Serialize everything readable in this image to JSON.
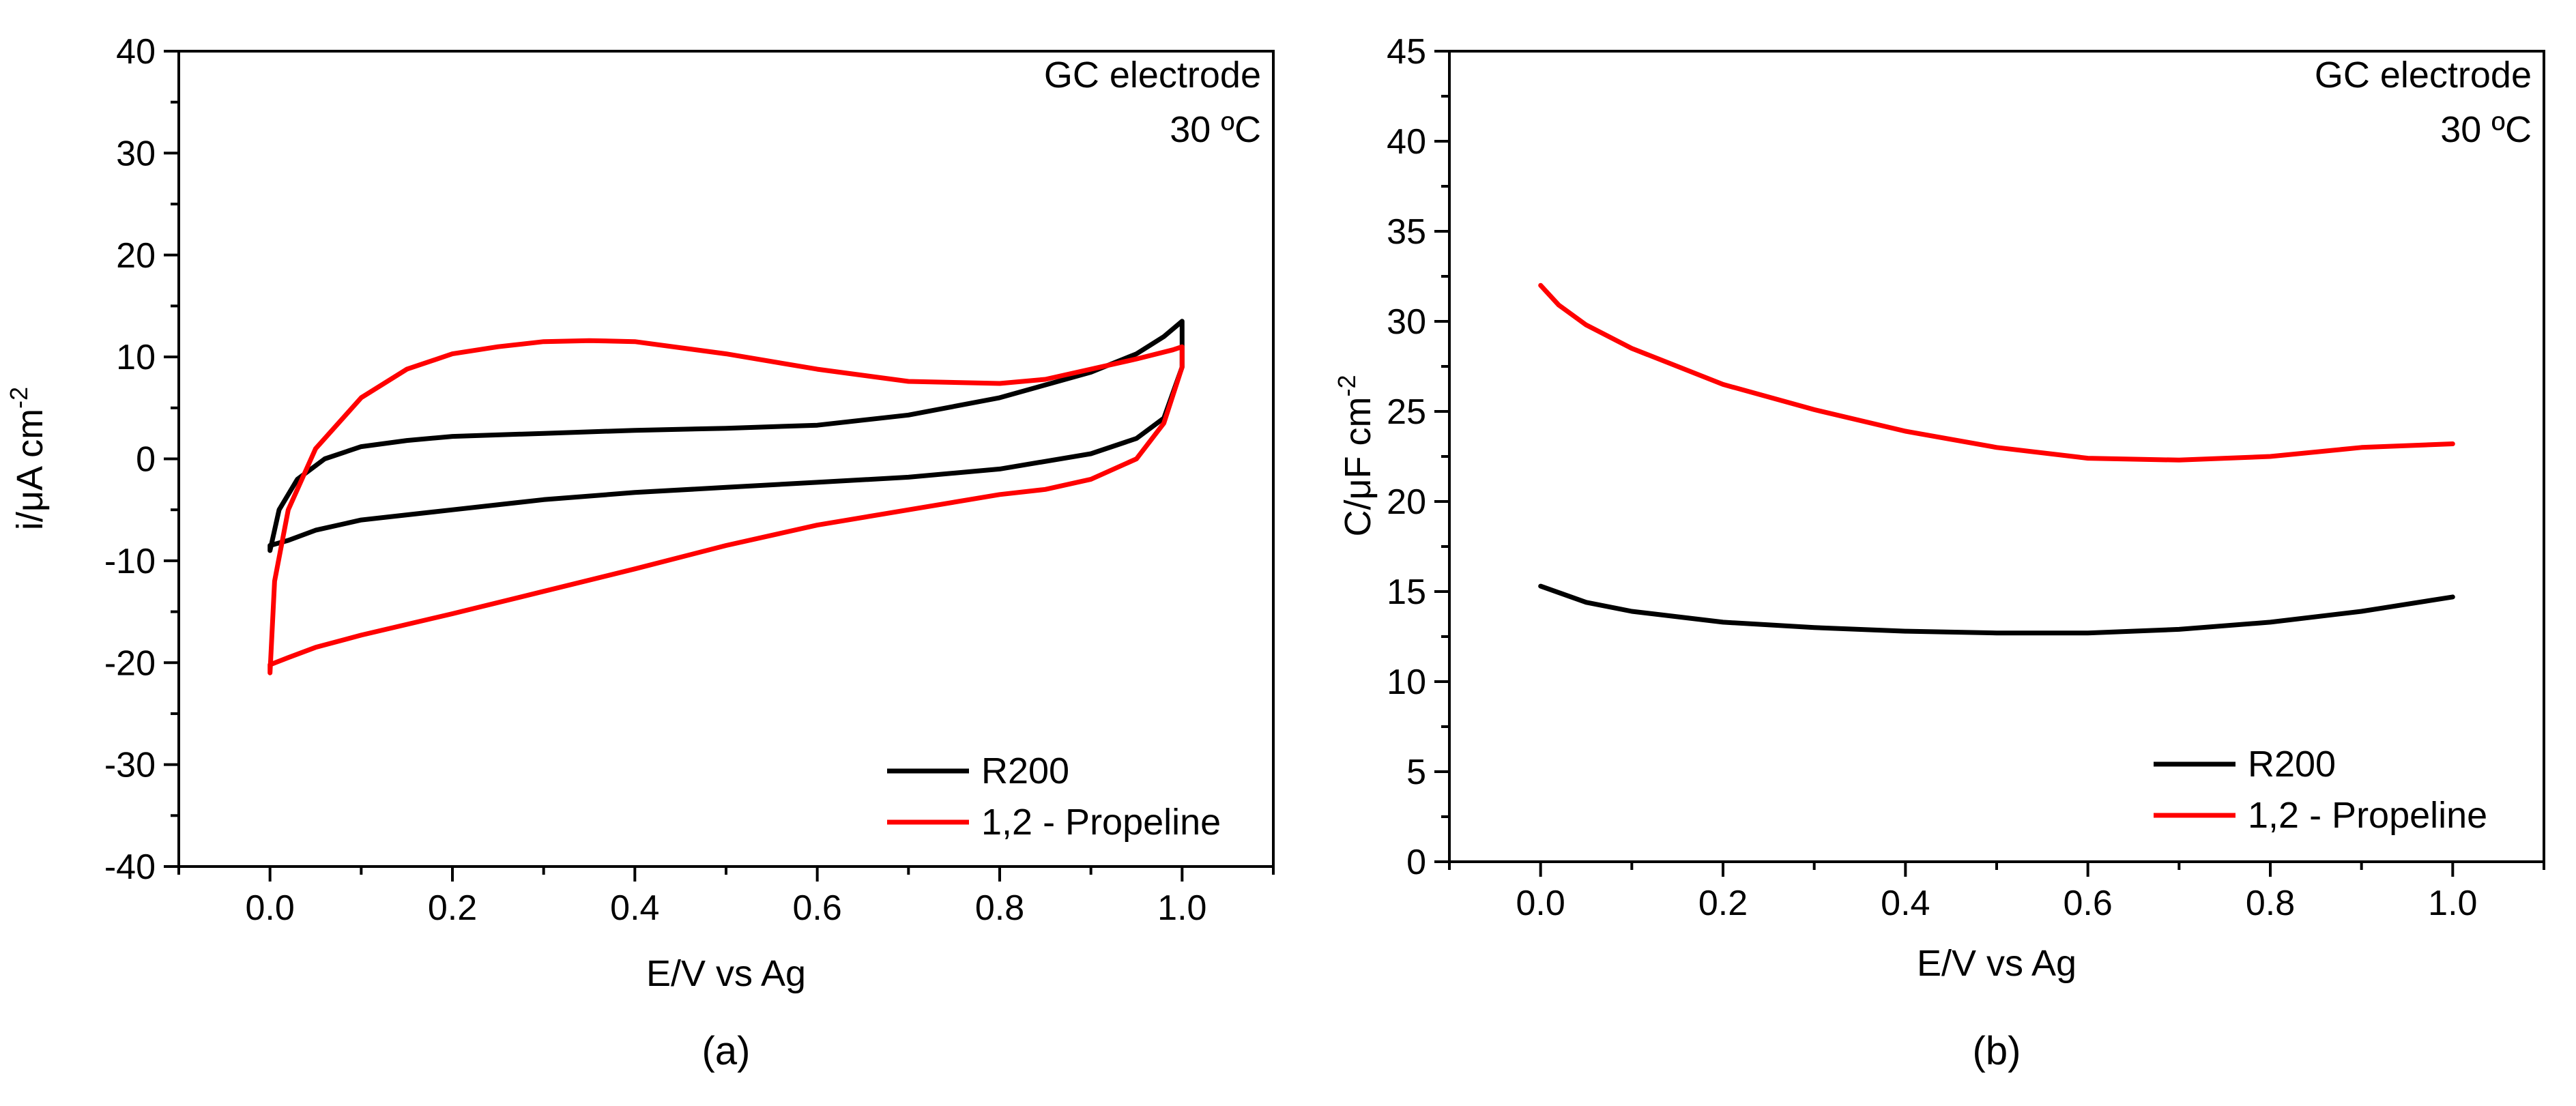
{
  "chart_data": [
    {
      "type": "line",
      "panel": "(a)",
      "annotation_lines": [
        "GC electrode",
        "30 ºC"
      ],
      "xlabel": "E/V vs Ag",
      "ylabel": "i/μA cm",
      "ylabel_sup": "-2",
      "xlim": [
        -0.1,
        1.1
      ],
      "ylim": [
        -40,
        40
      ],
      "xticks": [
        0.0,
        0.2,
        0.4,
        0.6,
        0.8,
        1.0
      ],
      "xtick_labels": [
        "0.0",
        "0.2",
        "0.4",
        "0.6",
        "0.8",
        "1.0"
      ],
      "yticks": [
        -40,
        -30,
        -20,
        -10,
        0,
        10,
        20,
        30,
        40
      ],
      "ytick_labels": [
        "-40",
        "-30",
        "-20",
        "-10",
        "0",
        "10",
        "20",
        "30",
        "40"
      ],
      "legend_position": "bottom-right",
      "series": [
        {
          "name": "R200",
          "color": "#000000",
          "x": [
            0.0,
            0.01,
            0.03,
            0.06,
            0.1,
            0.15,
            0.2,
            0.3,
            0.4,
            0.5,
            0.6,
            0.7,
            0.8,
            0.9,
            0.95,
            0.98,
            1.0,
            1.0,
            0.98,
            0.95,
            0.9,
            0.8,
            0.7,
            0.6,
            0.5,
            0.4,
            0.3,
            0.2,
            0.1,
            0.05,
            0.02,
            0.0,
            0.0
          ],
          "y": [
            -9,
            -5,
            -2,
            0,
            1.2,
            1.8,
            2.2,
            2.5,
            2.8,
            3.0,
            3.3,
            4.3,
            6.0,
            8.5,
            10.3,
            12.0,
            13.5,
            9,
            4,
            2,
            0.5,
            -1,
            -1.8,
            -2.3,
            -2.8,
            -3.3,
            -4,
            -5,
            -6,
            -7,
            -8,
            -8.5,
            -9
          ]
        },
        {
          "name": "1,2 - Propeline",
          "color": "#ff0000",
          "x": [
            0.0,
            0.005,
            0.02,
            0.05,
            0.1,
            0.15,
            0.2,
            0.25,
            0.3,
            0.35,
            0.4,
            0.5,
            0.6,
            0.7,
            0.8,
            0.85,
            0.9,
            0.95,
            0.99,
            1.0,
            1.0,
            0.98,
            0.95,
            0.9,
            0.85,
            0.8,
            0.7,
            0.6,
            0.5,
            0.4,
            0.3,
            0.2,
            0.1,
            0.05,
            0.02,
            0.0,
            0.0
          ],
          "y": [
            -21,
            -12,
            -5,
            1,
            6,
            8.8,
            10.3,
            11.0,
            11.5,
            11.6,
            11.5,
            10.3,
            8.8,
            7.6,
            7.4,
            7.8,
            8.8,
            9.8,
            10.7,
            11,
            9,
            3.5,
            0,
            -2,
            -3,
            -3.5,
            -5,
            -6.5,
            -8.5,
            -10.8,
            -13,
            -15.2,
            -17.3,
            -18.5,
            -19.5,
            -20.2,
            -21
          ]
        }
      ]
    },
    {
      "type": "line",
      "panel": "(b)",
      "annotation_lines": [
        "GC electrode",
        "30 ºC"
      ],
      "xlabel": "E/V vs Ag",
      "ylabel": "C/μF cm",
      "ylabel_sup": "-2",
      "xlim": [
        -0.1,
        1.1
      ],
      "ylim": [
        0,
        45
      ],
      "xticks": [
        0.0,
        0.2,
        0.4,
        0.6,
        0.8,
        1.0
      ],
      "xtick_labels": [
        "0.0",
        "0.2",
        "0.4",
        "0.6",
        "0.8",
        "1.0"
      ],
      "yticks": [
        0,
        5,
        10,
        15,
        20,
        25,
        30,
        35,
        40,
        45
      ],
      "ytick_labels": [
        "0",
        "5",
        "10",
        "15",
        "20",
        "25",
        "30",
        "35",
        "40",
        "45"
      ],
      "legend_position": "bottom-right",
      "series": [
        {
          "name": "R200",
          "color": "#000000",
          "x": [
            0.0,
            0.05,
            0.1,
            0.2,
            0.3,
            0.4,
            0.5,
            0.6,
            0.7,
            0.8,
            0.9,
            1.0
          ],
          "y": [
            15.3,
            14.4,
            13.9,
            13.3,
            13.0,
            12.8,
            12.7,
            12.7,
            12.9,
            13.3,
            13.9,
            14.7
          ]
        },
        {
          "name": "1,2 - Propeline",
          "color": "#ff0000",
          "x": [
            0.0,
            0.02,
            0.05,
            0.1,
            0.2,
            0.3,
            0.4,
            0.5,
            0.6,
            0.7,
            0.8,
            0.9,
            1.0
          ],
          "y": [
            32.0,
            30.9,
            29.8,
            28.5,
            26.5,
            25.1,
            23.9,
            23.0,
            22.4,
            22.3,
            22.5,
            23.0,
            23.2
          ]
        }
      ]
    }
  ]
}
